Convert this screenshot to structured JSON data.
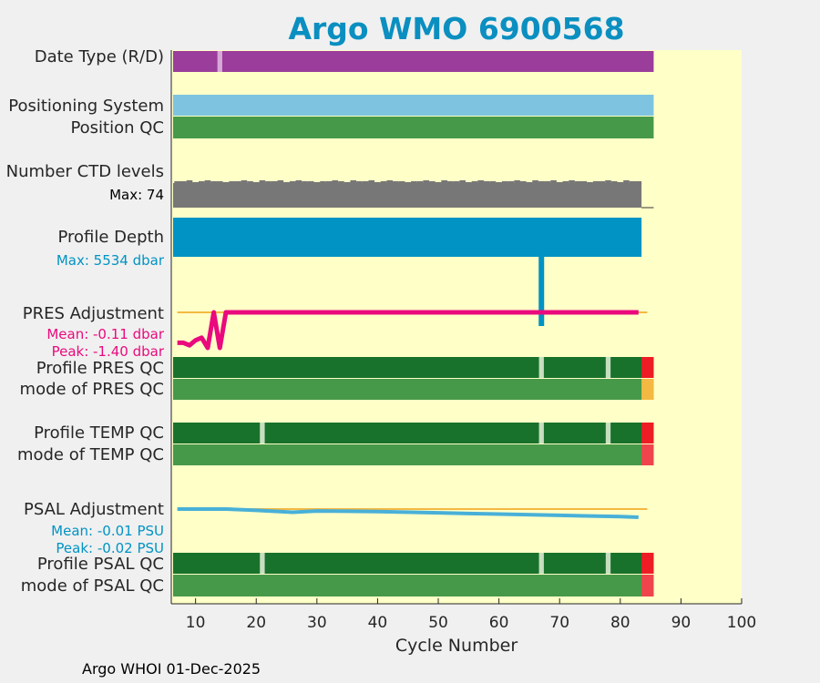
{
  "title": "Argo WMO 6900568",
  "footer": "Argo WHOI 01-Dec-2025",
  "colors": {
    "background": "#ffffc8",
    "figure": "#f0f0f0",
    "title": "#0a8fc0",
    "mode_bar": "#9a3d9b",
    "mode_gap": "#d8a8d8",
    "positioning_system": "#7ec4e0",
    "good_qc": "#47994a",
    "profile_qc_A": "#18722b",
    "bad_qc": "#ee1c25",
    "probably_bad": "#f0444c",
    "mode_pres_orange": "#f4b942",
    "light_gap": "#c8dec0",
    "ctd": "#777777",
    "depth": "#0093c4",
    "pres_adj": "#ea0a7d",
    "psal_adj": "#48b0d8",
    "zero_line": "#f4b942"
  },
  "labels": {
    "date_type": "Date Type (R/D)",
    "positioning_system": "Positioning System",
    "position_qc": "Position QC",
    "ctd_levels": "Number CTD levels",
    "ctd_max": "Max: 74",
    "profile_depth": "Profile Depth",
    "depth_max": "Max: 5534 dbar",
    "pres_adj": "PRES Adjustment",
    "pres_mean": "Mean: -0.11 dbar",
    "pres_peak": "Peak: -1.40 dbar",
    "profile_pres_qc": "Profile PRES QC",
    "mode_pres_qc": "mode of PRES QC",
    "profile_temp_qc": "Profile TEMP QC",
    "mode_temp_qc": "mode of TEMP QC",
    "psal_adj": "PSAL Adjustment",
    "psal_mean": "Mean: -0.01 PSU",
    "psal_peak": "Peak: -0.02 PSU",
    "profile_psal_qc": "Profile PSAL QC",
    "mode_psal_qc": "mode of PSAL QC"
  },
  "chart_data": {
    "type": "bar",
    "xlabel": "Cycle Number",
    "xlim": [
      6,
      100
    ],
    "xticks": [
      10,
      20,
      30,
      40,
      50,
      60,
      70,
      80,
      90,
      100
    ],
    "last_cycle": 85,
    "date_type_gaps": [
      14
    ],
    "profile_qc_gaps": [
      67,
      78
    ],
    "temp_psal_qc_gaps": [
      21,
      67,
      78
    ],
    "bad_qc_cycles": [
      84,
      85
    ],
    "pres_adjustment": {
      "cycles": [
        7,
        8,
        9,
        10,
        11,
        12,
        13,
        14,
        15,
        16,
        20,
        30,
        40,
        50,
        60,
        70,
        80,
        83
      ],
      "values": [
        -1.2,
        -1.2,
        -1.3,
        -1.1,
        -1.0,
        -1.4,
        0.0,
        -1.4,
        0.0,
        0.0,
        0.0,
        0.0,
        0.0,
        0.0,
        0.0,
        0.0,
        0.0,
        0.0
      ],
      "mean": -0.11,
      "peak": -1.4
    },
    "psal_adjustment": {
      "cycles": [
        7,
        15,
        20,
        26,
        30,
        40,
        50,
        60,
        70,
        80,
        83
      ],
      "values": [
        0.0,
        0.0,
        -0.002,
        -0.005,
        -0.003,
        -0.004,
        -0.006,
        -0.008,
        -0.01,
        -0.012,
        -0.013
      ],
      "mean": -0.01,
      "peak": -0.02
    },
    "ctd_levels_max": 74,
    "profile_depth_max": 5534,
    "depth_spike_cycle": 67
  }
}
